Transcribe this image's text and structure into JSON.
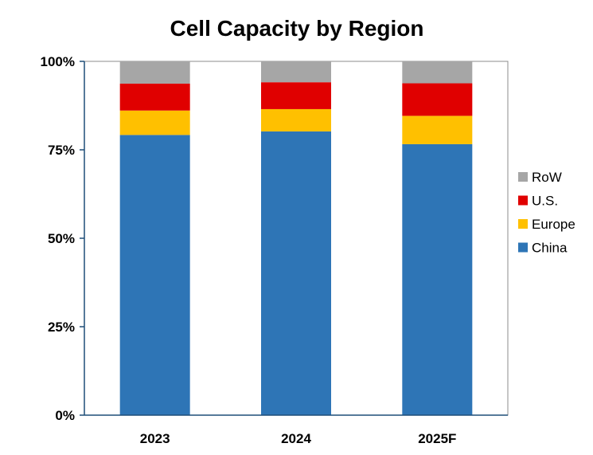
{
  "chart_data": {
    "type": "bar",
    "stacked": true,
    "title": "Cell Capacity by Region",
    "xlabel": "",
    "ylabel": "",
    "categories": [
      "2023",
      "2024",
      "2025F"
    ],
    "series": [
      {
        "name": "China",
        "color": "#2E75B6",
        "values": [
          79.2,
          80.2,
          76.6
        ]
      },
      {
        "name": "Europe",
        "color": "#FFC000",
        "values": [
          6.9,
          6.3,
          8.0
        ]
      },
      {
        "name": "U.S.",
        "color": "#E00000",
        "values": [
          7.6,
          7.6,
          9.2
        ]
      },
      {
        "name": "RoW",
        "color": "#A6A6A6",
        "values": [
          6.3,
          5.9,
          6.2
        ]
      }
    ],
    "ylim": [
      0,
      100
    ],
    "yticks": [
      "0%",
      "25%",
      "50%",
      "75%",
      "100%"
    ],
    "grid": false,
    "legend": "right"
  }
}
